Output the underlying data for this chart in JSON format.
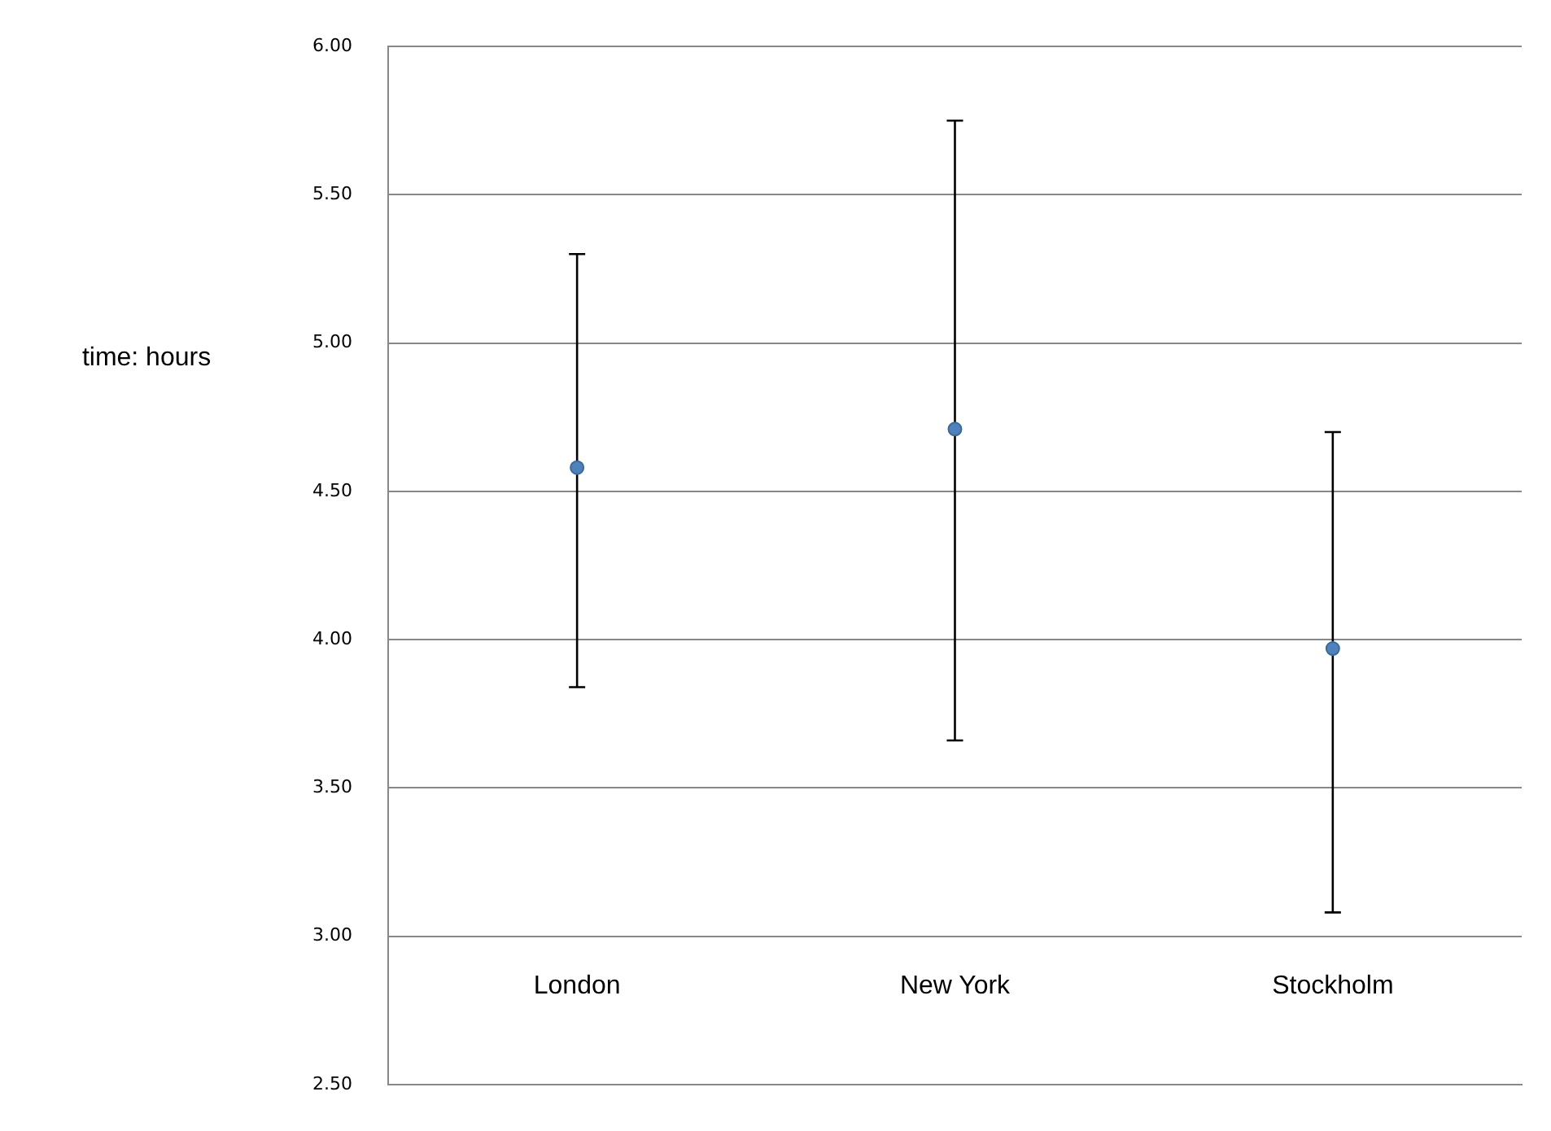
{
  "chart_data": {
    "type": "scatter",
    "ylabel": "time: hours",
    "categories": [
      "London",
      "New York",
      "Stockholm"
    ],
    "series": [
      {
        "color": "#4f81bd",
        "values": [
          4.58,
          4.71,
          3.97
        ],
        "errors": [
          [
            3.84,
            5.3
          ],
          [
            3.66,
            5.75
          ],
          [
            3.08,
            4.7
          ]
        ]
      }
    ],
    "ylim": [
      2.5,
      6
    ],
    "yticks": [
      {
        "value": 2.5,
        "label": "2.50"
      },
      {
        "value": 3,
        "label": "3.00"
      },
      {
        "value": 3.5,
        "label": "3.50"
      },
      {
        "value": 4,
        "label": "4.00"
      },
      {
        "value": 4.5,
        "label": "4.50"
      },
      {
        "value": 5,
        "label": "5.00"
      },
      {
        "value": 5.5,
        "label": "5.50"
      },
      {
        "value": 6,
        "label": "6.00"
      }
    ],
    "grid": "y",
    "legend": false,
    "marker": "circle"
  }
}
